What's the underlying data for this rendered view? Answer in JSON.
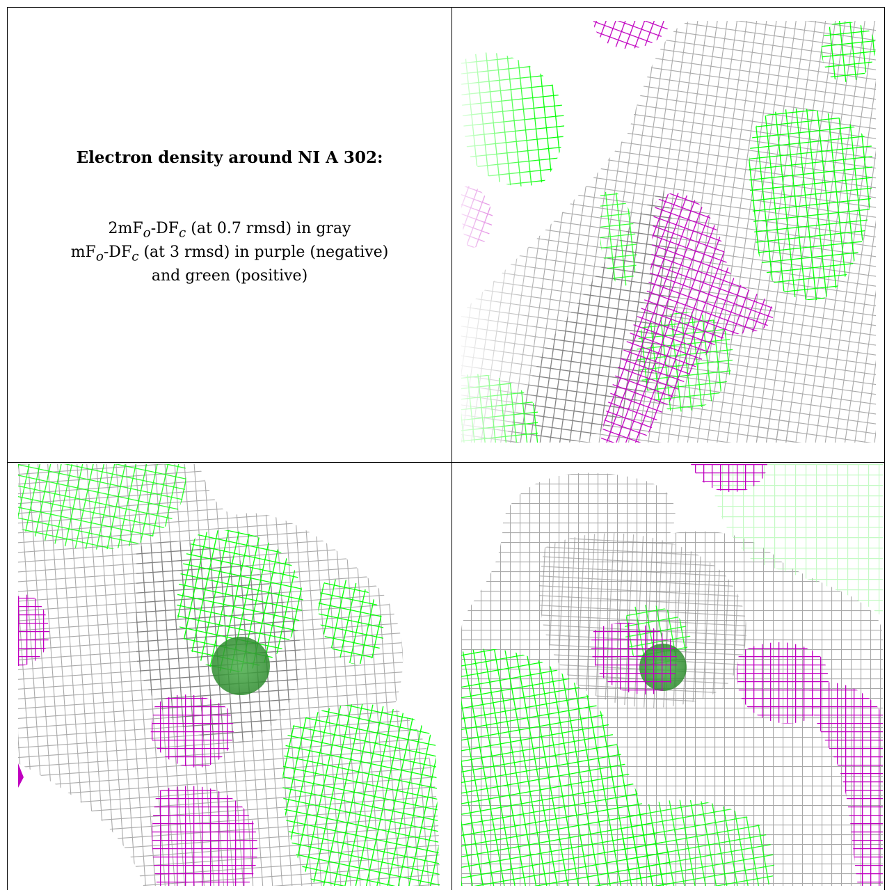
{
  "caption": {
    "title": "Electron density around NI A 302:",
    "line1_prefix": "2mF",
    "line1_sub_o": "o",
    "line1_mid": "-DF",
    "line1_sub_c": "c",
    "line1_suffix": " (at 0.7 rmsd) in gray",
    "line2_prefix": "mF",
    "line2_sub_o": "o",
    "line2_mid": "-DF",
    "line2_sub_c": "c",
    "line2_suffix": " (at 3 rmsd) in purple (negative)",
    "line3": "and green (positive)"
  },
  "colors": {
    "gray_mesh": "#a8a8a8",
    "gray_dark": "#6e6e6e",
    "green_mesh": "#00ff00",
    "purple_mesh": "#c000c0",
    "ni_atom": "#2e8b2e"
  }
}
